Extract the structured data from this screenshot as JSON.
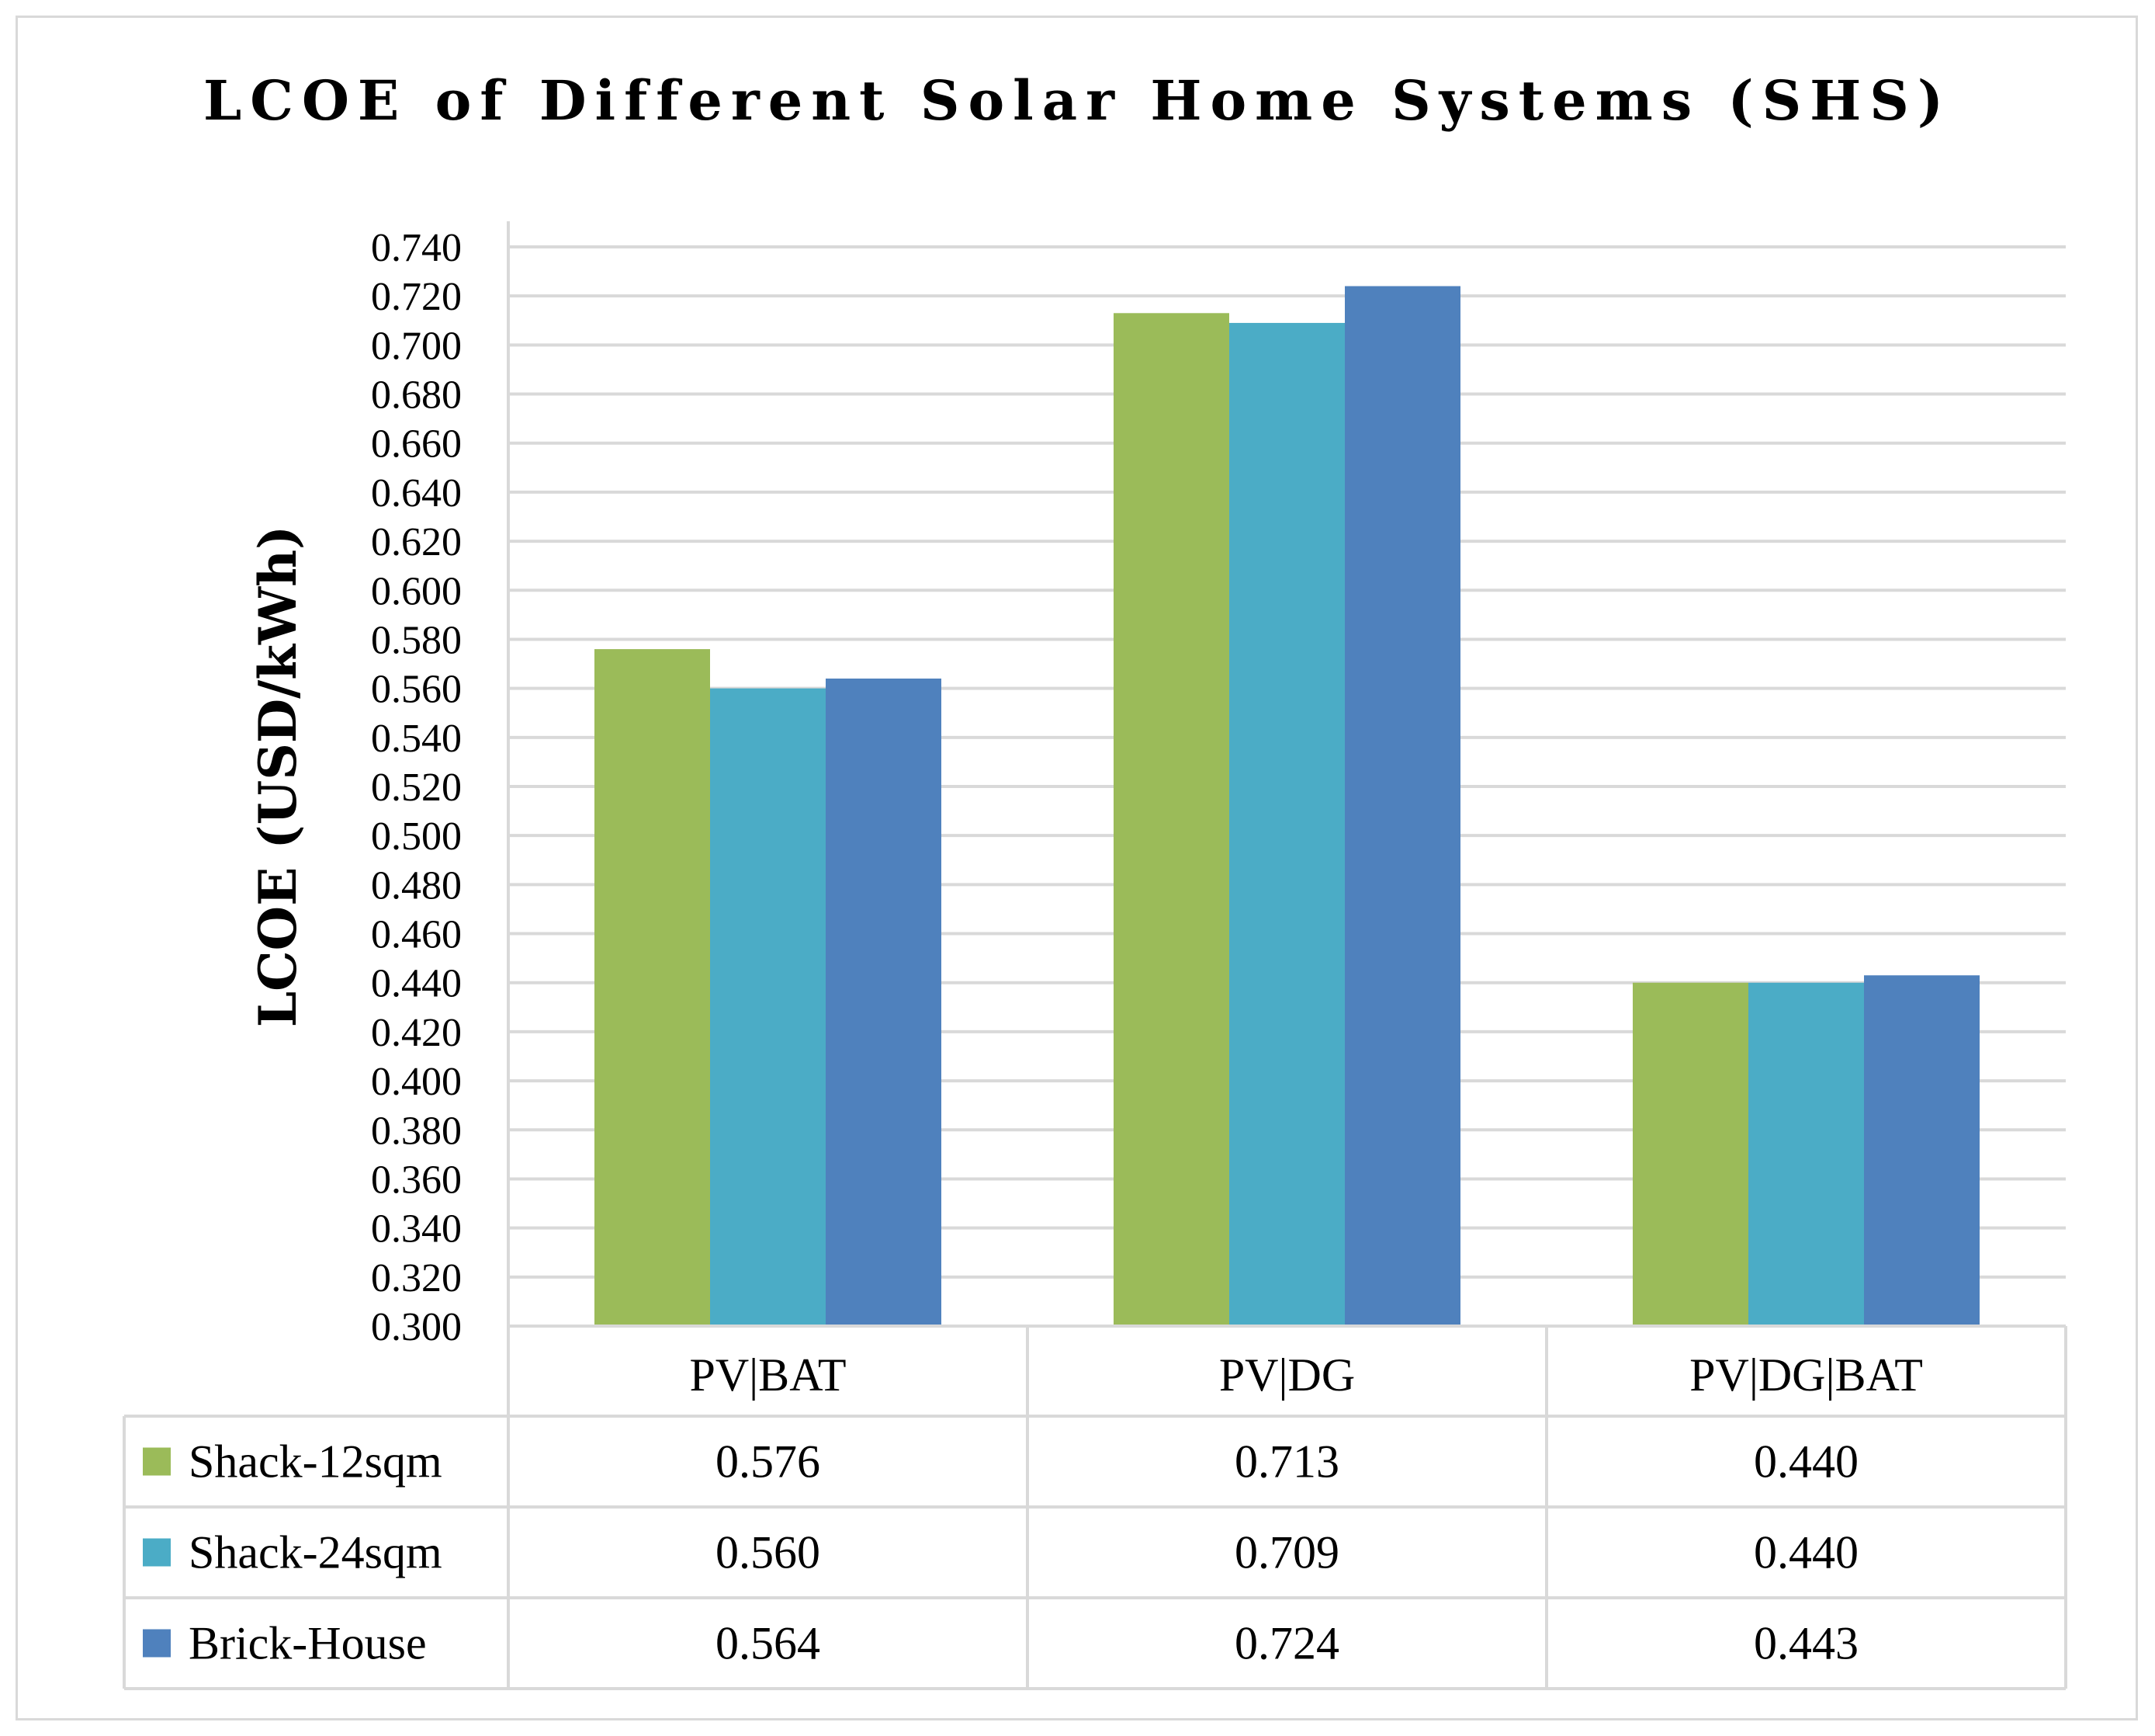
{
  "chart_data": {
    "type": "bar",
    "title": "LCOE of Different Solar Home Systems (SHS)",
    "xlabel": "",
    "ylabel": "LCOE (USD/kWh)",
    "ylim": [
      0.3,
      0.74
    ],
    "ytick_step": 0.02,
    "grid": true,
    "legend": "data-table",
    "categories": [
      "PV|BAT",
      "PV|DG",
      "PV|DG|BAT"
    ],
    "series": [
      {
        "name": "Shack-12sqm",
        "color": "#9bbb59",
        "values": [
          0.576,
          0.713,
          0.44
        ],
        "labels": [
          "0.576",
          "0.713",
          "0.440"
        ]
      },
      {
        "name": "Shack-24sqm",
        "color": "#4bacc6",
        "values": [
          0.56,
          0.709,
          0.44
        ],
        "labels": [
          "0.560",
          "0.709",
          "0.440"
        ]
      },
      {
        "name": "Brick-House",
        "color": "#4f81bd",
        "values": [
          0.564,
          0.724,
          0.443
        ],
        "labels": [
          "0.564",
          "0.724",
          "0.443"
        ]
      }
    ],
    "yticks": [
      "0.300",
      "0.320",
      "0.340",
      "0.360",
      "0.380",
      "0.400",
      "0.420",
      "0.440",
      "0.460",
      "0.480",
      "0.500",
      "0.520",
      "0.540",
      "0.560",
      "0.580",
      "0.600",
      "0.620",
      "0.640",
      "0.660",
      "0.680",
      "0.700",
      "0.720",
      "0.740"
    ]
  }
}
